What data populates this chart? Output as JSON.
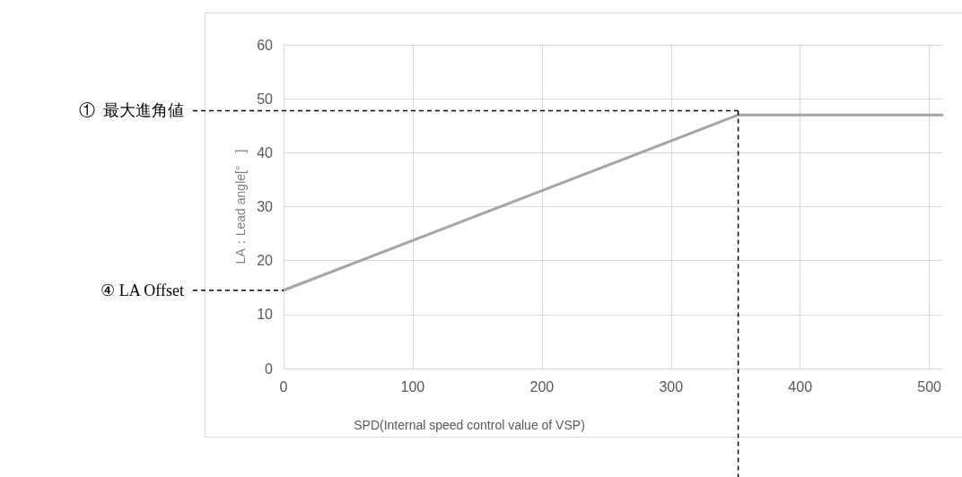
{
  "chart_data": {
    "type": "line",
    "xlabel": "SPD(Internal speed control value of VSP)",
    "ylabel": "LA：Lead angle[°　]",
    "x": [
      0,
      352,
      510
    ],
    "series": [
      {
        "color": "#a5a5a5",
        "values": [
          14.5,
          47,
          47
        ]
      }
    ],
    "xlim": [
      0,
      510
    ],
    "xticks": [
      0,
      100,
      200,
      300,
      400,
      500
    ],
    "ylim": [
      0,
      60
    ],
    "yticks": [
      0,
      10,
      20,
      30,
      40,
      50,
      60
    ],
    "grid": true,
    "marker": "none",
    "line_style": "solid",
    "ref_lines": [
      {
        "axis": "y",
        "value": 47.8,
        "label": "①  最大進角値",
        "color": "#000000",
        "line_style": "dashed"
      },
      {
        "axis": "y",
        "value": 14.5,
        "label": "④ LA Offset",
        "color": "#000000",
        "line_style": "dashed"
      },
      {
        "axis": "x",
        "value": 352,
        "color": "#000000",
        "line_style": "dashed"
      }
    ]
  }
}
